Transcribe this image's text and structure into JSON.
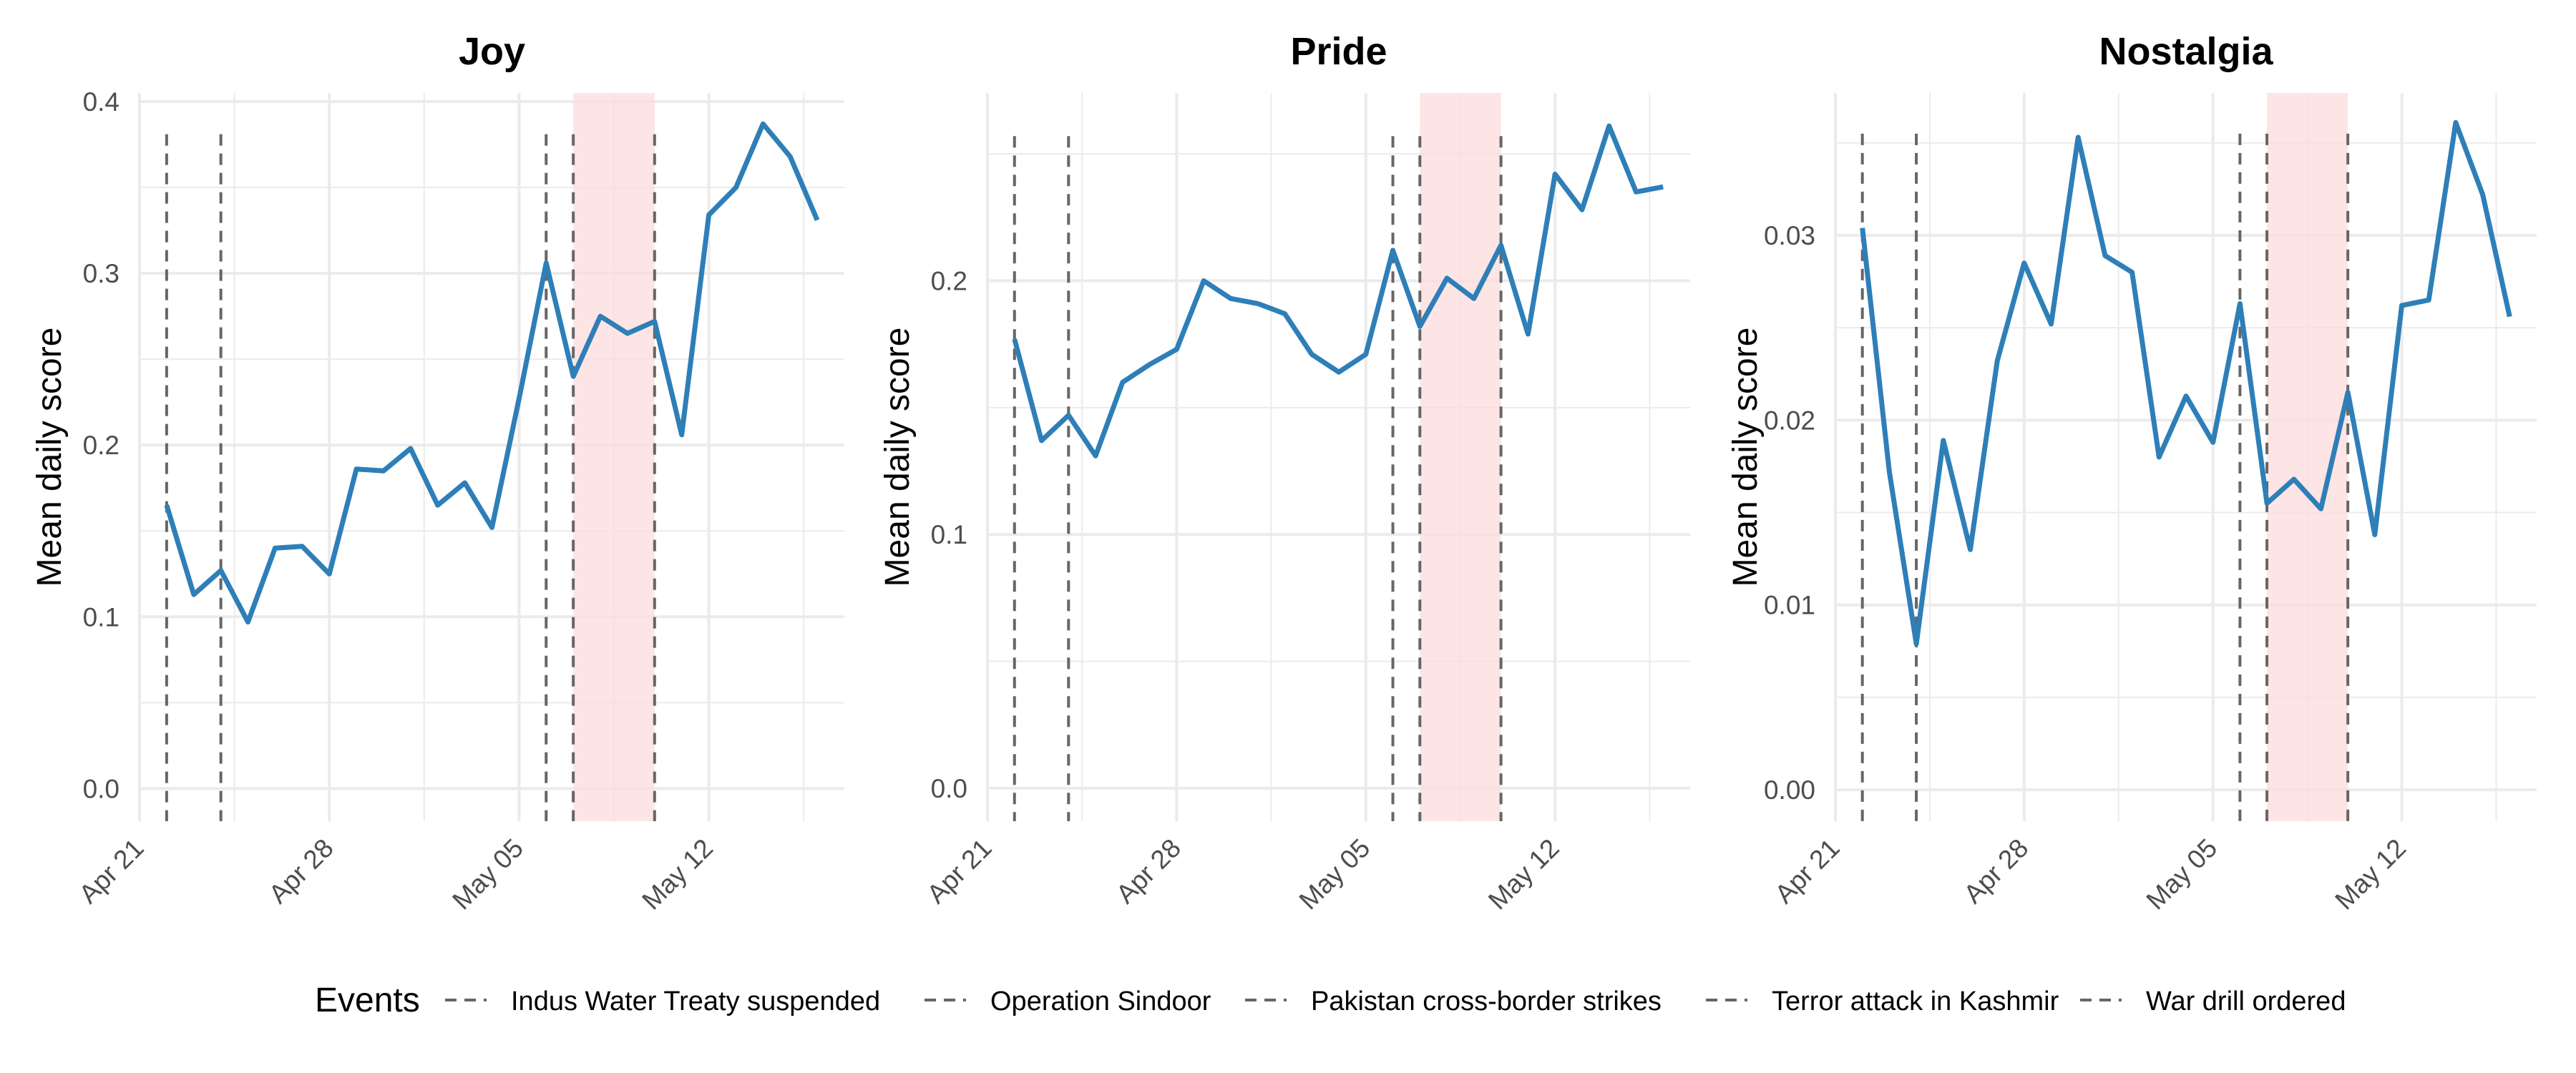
{
  "chart_data": [
    {
      "type": "line",
      "title": "Joy",
      "ylabel": "Mean daily score",
      "xlabel": "",
      "x": [
        "2025-04-22",
        "2025-04-23",
        "2025-04-24",
        "2025-04-25",
        "2025-04-26",
        "2025-04-27",
        "2025-04-28",
        "2025-04-29",
        "2025-04-30",
        "2025-05-01",
        "2025-05-02",
        "2025-05-03",
        "2025-05-04",
        "2025-05-05",
        "2025-05-06",
        "2025-05-07",
        "2025-05-08",
        "2025-05-09",
        "2025-05-10",
        "2025-05-11",
        "2025-05-12",
        "2025-05-13",
        "2025-05-14",
        "2025-05-15",
        "2025-05-16"
      ],
      "series": [
        {
          "values": [
            0.165,
            0.113,
            0.127,
            0.097,
            0.14,
            0.141,
            0.125,
            0.186,
            0.185,
            0.198,
            0.165,
            0.178,
            0.152,
            0.227,
            0.306,
            0.24,
            0.275,
            0.265,
            0.272,
            0.206,
            0.334,
            0.35,
            0.387,
            0.368,
            0.331
          ]
        }
      ],
      "ylim": [
        -0.019,
        0.405
      ],
      "yticks": [
        0.0,
        0.1,
        0.2,
        0.3,
        0.4
      ],
      "ytick_labels": [
        "0.0",
        "0.1",
        "0.2",
        "0.3",
        "0.4"
      ],
      "event_top": 0.381
    },
    {
      "type": "line",
      "title": "Pride",
      "ylabel": "Mean daily score",
      "xlabel": "",
      "x": [
        "2025-04-22",
        "2025-04-23",
        "2025-04-24",
        "2025-04-25",
        "2025-04-26",
        "2025-04-27",
        "2025-04-28",
        "2025-04-29",
        "2025-04-30",
        "2025-05-01",
        "2025-05-02",
        "2025-05-03",
        "2025-05-04",
        "2025-05-05",
        "2025-05-06",
        "2025-05-07",
        "2025-05-08",
        "2025-05-09",
        "2025-05-10",
        "2025-05-11",
        "2025-05-12",
        "2025-05-13",
        "2025-05-14",
        "2025-05-15",
        "2025-05-16"
      ],
      "series": [
        {
          "values": [
            0.177,
            0.137,
            0.147,
            0.131,
            0.16,
            0.167,
            0.173,
            0.2,
            0.193,
            0.191,
            0.187,
            0.171,
            0.164,
            0.171,
            0.212,
            0.182,
            0.201,
            0.193,
            0.214,
            0.179,
            0.242,
            0.228,
            0.261,
            0.235,
            0.237
          ]
        }
      ],
      "ylim": [
        -0.013,
        0.274
      ],
      "yticks": [
        0.0,
        0.1,
        0.2
      ],
      "ytick_labels": [
        "0.0",
        "0.1",
        "0.2"
      ],
      "event_top": 0.257
    },
    {
      "type": "line",
      "title": "Nostalgia",
      "ylabel": "Mean daily score",
      "xlabel": "",
      "x": [
        "2025-04-22",
        "2025-04-23",
        "2025-04-24",
        "2025-04-25",
        "2025-04-26",
        "2025-04-27",
        "2025-04-28",
        "2025-04-29",
        "2025-04-30",
        "2025-05-01",
        "2025-05-02",
        "2025-05-03",
        "2025-05-04",
        "2025-05-05",
        "2025-05-06",
        "2025-05-07",
        "2025-05-08",
        "2025-05-09",
        "2025-05-10",
        "2025-05-11",
        "2025-05-12",
        "2025-05-13",
        "2025-05-14",
        "2025-05-15",
        "2025-05-16"
      ],
      "series": [
        {
          "values": [
            0.0304,
            0.0172,
            0.0079,
            0.0189,
            0.013,
            0.0232,
            0.0285,
            0.0252,
            0.0353,
            0.0289,
            0.028,
            0.018,
            0.0213,
            0.0188,
            0.0263,
            0.0155,
            0.0168,
            0.0152,
            0.0215,
            0.0138,
            0.0262,
            0.0265,
            0.0361,
            0.0322,
            0.0256
          ]
        }
      ],
      "ylim": [
        -0.0017,
        0.0377
      ],
      "yticks": [
        0.0,
        0.01,
        0.02,
        0.03
      ],
      "ytick_labels": [
        "0.00",
        "0.01",
        "0.02",
        "0.03"
      ],
      "event_top": 0.0355
    }
  ],
  "x_axis": {
    "range": [
      "2025-04-21",
      "2025-05-17"
    ],
    "ticks": [
      "2025-04-21",
      "2025-04-28",
      "2025-05-05",
      "2025-05-12"
    ],
    "tick_labels": [
      "Apr 21",
      "Apr 28",
      "May 05",
      "May 12"
    ]
  },
  "events": [
    {
      "date": "2025-04-22"
    },
    {
      "date": "2025-04-24"
    },
    {
      "date": "2025-05-06"
    },
    {
      "date": "2025-05-07"
    },
    {
      "date": "2025-05-10"
    }
  ],
  "shaded_period": {
    "start": "2025-05-07",
    "end": "2025-05-10",
    "color": "#fddcdc"
  },
  "legend": {
    "title": "Events",
    "position": "bottom",
    "items": [
      "Indus Water Treaty suspended",
      "Operation Sindoor",
      "Pakistan cross-border strikes",
      "Terror attack in Kashmir",
      "War drill ordered"
    ]
  },
  "colors": {
    "line": "#2e7fb8",
    "event_line": "#666666",
    "grid": "#ebebeb"
  }
}
